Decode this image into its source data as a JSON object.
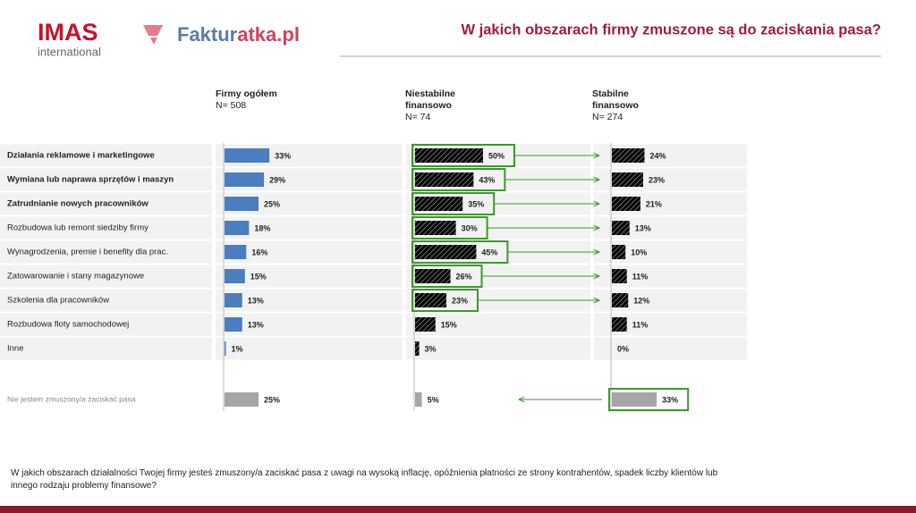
{
  "header": {
    "logo_main": "IMAS",
    "logo_sub": "international",
    "logo2_a": "Faktur",
    "logo2_b": "atka.pl"
  },
  "chart_data": {
    "type": "bar",
    "orientation": "horizontal",
    "title": "W jakich obszarach firmy zmuszone są do zaciskania pasa?",
    "categories": [
      "Działania reklamowe i marketingowe",
      "Wymiana lub naprawa sprzętów i maszyn",
      "Zatrudnianie nowych pracowników",
      "Rozbudowa lub remont siedziby firmy",
      "Wynagrodzenia, premie i benefity dla prac.",
      "Zatowarowanie i stany magazynowe",
      "Szkolenia dla pracowników",
      "Rozbudowa floty samochodowej",
      "Inne",
      "Nie jestem zmuszony/a zaciskać pasa"
    ],
    "bold_categories": [
      0,
      1,
      2
    ],
    "muted_categories": [
      9
    ],
    "muted_color": "#a6a6a6",
    "series": [
      {
        "name": "Firmy ogółem",
        "sample": "N= 508",
        "color": "#4a7ebf",
        "pattern": "solid",
        "values": [
          33,
          29,
          25,
          18,
          16,
          15,
          13,
          13,
          1,
          25
        ],
        "value_labels": [
          "33%",
          "29%",
          "25%",
          "18%",
          "16%",
          "15%",
          "13%",
          "13%",
          "1%",
          "25%"
        ],
        "highlight": []
      },
      {
        "name": "Niestabilne finansowo",
        "sample": "N= 74",
        "color": "#c0144f",
        "pattern": "hatch",
        "values": [
          50,
          43,
          35,
          30,
          45,
          26,
          23,
          15,
          3,
          5
        ],
        "value_labels": [
          "50%",
          "43%",
          "35%",
          "30%",
          "45%",
          "26%",
          "23%",
          "15%",
          "3%",
          "5%"
        ],
        "highlight": [
          0,
          1,
          2,
          3,
          4,
          5,
          6
        ]
      },
      {
        "name": "Stabilne finansowo",
        "sample": "N= 274",
        "color": "#2e5597",
        "pattern": "hatch",
        "values": [
          24,
          23,
          21,
          13,
          10,
          11,
          12,
          11,
          0,
          33
        ],
        "value_labels": [
          "24%",
          "23%",
          "21%",
          "13%",
          "10%",
          "11%",
          "12%",
          "11%",
          "0%",
          "33%"
        ],
        "highlight": [
          9
        ]
      }
    ],
    "highlight_color": "#3a9a2a"
  },
  "footnote": "W jakich obszarach działalności Twojej firmy jesteś zmuszony/a zaciskać pasa z uwagi na wysoką inflację, opóźnienia płatności ze strony kontrahentów, spadek liczby klientów lub innego rodzaju problemy  finansowe?"
}
